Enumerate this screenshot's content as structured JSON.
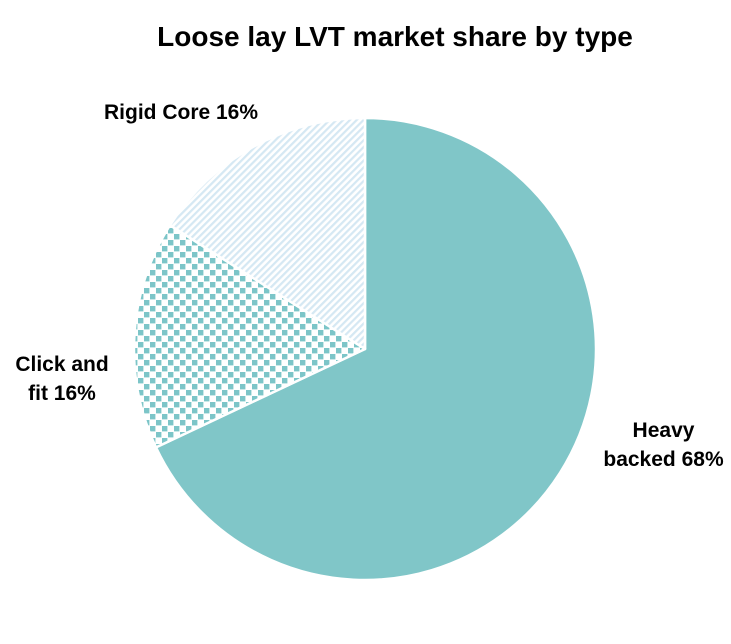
{
  "title": "Loose lay LVT market share by type",
  "chart_data": {
    "type": "pie",
    "title": "Loose lay LVT market share by type",
    "unit": "%",
    "start_angle_deg": 0,
    "direction": "clockwise",
    "legend": "none",
    "data_labels": "outside",
    "slices": [
      {
        "label": "Heavy backed",
        "value": 68,
        "pattern": "solid"
      },
      {
        "label": "Click and fit",
        "value": 16,
        "pattern": "checkerboard"
      },
      {
        "label": "Rigid Core",
        "value": 16,
        "pattern": "diagonal-stripes"
      }
    ]
  },
  "labels": {
    "rigid_core": "Rigid Core 16%",
    "click_fit_line1": "Click and",
    "click_fit_line2": "fit 16%",
    "heavy_line1": "Heavy",
    "heavy_line2": "backed 68%"
  },
  "colors": {
    "solid_teal": "#80c6c8",
    "checker_teal": "#7cc5c8",
    "stripe_blue": "#d5e8f3",
    "slice_border": "#ffffff",
    "background": "#ffffff",
    "text": "#000000"
  }
}
